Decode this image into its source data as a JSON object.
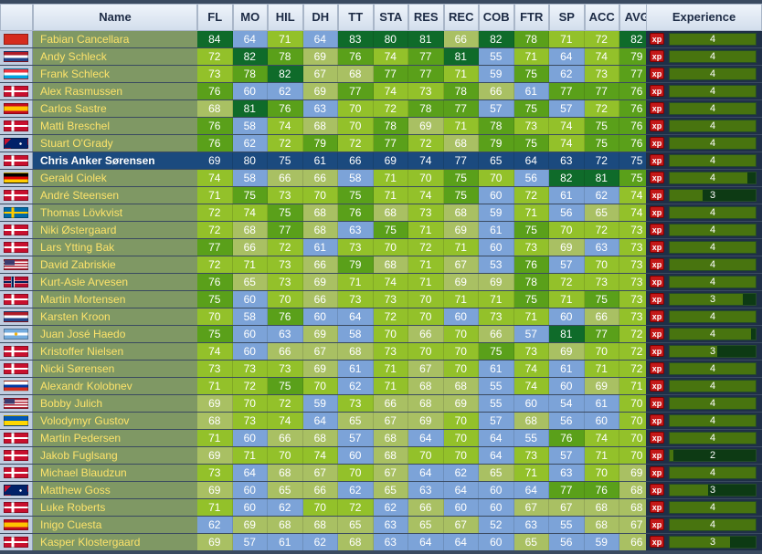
{
  "headers": {
    "name": "Name",
    "stats": [
      "FL",
      "MO",
      "HIL",
      "DH",
      "TT",
      "STA",
      "RES",
      "REC",
      "COB",
      "FTR",
      "SP",
      "ACC",
      "AVG"
    ],
    "experience": "Experience"
  },
  "xp_badge": "xp",
  "selected_rider": "Chris Anker Sørensen",
  "colors": {
    "low": "#7ca3d8",
    "mid_low": "#a9c063",
    "mid": "#93c12a",
    "high": "#5aa01a",
    "top": "#0f6b2a",
    "name_cell": "#7f9864",
    "name_text": "#fde36a",
    "selected_row": "#1b4a7e"
  },
  "riders": [
    {
      "flag": "switzerland",
      "name": "Fabian Cancellara",
      "stats": [
        84,
        64,
        71,
        64,
        83,
        80,
        81,
        66,
        82,
        78,
        71,
        72,
        82
      ],
      "exp_level": 4,
      "exp_progress": 0
    },
    {
      "flag": "netherlands",
      "name": "Andy Schleck",
      "stats": [
        72,
        82,
        78,
        69,
        76,
        74,
        77,
        81,
        55,
        71,
        64,
        74,
        79
      ],
      "exp_level": 4,
      "exp_progress": 0
    },
    {
      "flag": "luxembourg",
      "name": "Frank Schleck",
      "stats": [
        73,
        78,
        82,
        67,
        68,
        77,
        77,
        71,
        59,
        75,
        62,
        73,
        77
      ],
      "exp_level": 4,
      "exp_progress": 0
    },
    {
      "flag": "denmark",
      "name": "Alex Rasmussen",
      "stats": [
        76,
        60,
        62,
        69,
        77,
        74,
        73,
        78,
        66,
        61,
        77,
        77,
        76
      ],
      "exp_level": 4,
      "exp_progress": 0
    },
    {
      "flag": "spain",
      "name": "Carlos Sastre",
      "stats": [
        68,
        81,
        76,
        63,
        70,
        72,
        78,
        77,
        57,
        75,
        57,
        72,
        76
      ],
      "exp_level": 4,
      "exp_progress": 0
    },
    {
      "flag": "denmark",
      "name": "Matti Breschel",
      "stats": [
        76,
        58,
        74,
        68,
        70,
        78,
        69,
        71,
        78,
        73,
        74,
        75,
        76
      ],
      "exp_level": 4,
      "exp_progress": 0
    },
    {
      "flag": "australia",
      "name": "Stuart O'Grady",
      "stats": [
        76,
        62,
        72,
        79,
        72,
        77,
        72,
        68,
        79,
        75,
        74,
        75,
        76
      ],
      "exp_level": 4,
      "exp_progress": 0
    },
    {
      "flag": "denmark",
      "name": "Chris Anker Sørensen",
      "stats": [
        69,
        80,
        75,
        61,
        66,
        69,
        74,
        77,
        65,
        64,
        63,
        72,
        75
      ],
      "exp_level": 4,
      "exp_progress": 0
    },
    {
      "flag": "germany",
      "name": "Gerald Ciolek",
      "stats": [
        74,
        58,
        66,
        66,
        58,
        71,
        70,
        75,
        70,
        56,
        82,
        81,
        75
      ],
      "exp_level": 4,
      "exp_progress": 0.1
    },
    {
      "flag": "denmark",
      "name": "André Steensen",
      "stats": [
        71,
        75,
        73,
        70,
        75,
        71,
        74,
        75,
        60,
        72,
        61,
        62,
        74
      ],
      "exp_level": 3,
      "exp_progress": 0.62
    },
    {
      "flag": "sweden",
      "name": "Thomas Lövkvist",
      "stats": [
        72,
        74,
        75,
        68,
        76,
        68,
        73,
        68,
        59,
        71,
        56,
        65,
        74
      ],
      "exp_level": 4,
      "exp_progress": 0
    },
    {
      "flag": "denmark",
      "name": "Niki Østergaard",
      "stats": [
        72,
        68,
        77,
        68,
        63,
        75,
        71,
        69,
        61,
        75,
        70,
        72,
        73
      ],
      "exp_level": 4,
      "exp_progress": 0
    },
    {
      "flag": "denmark",
      "name": "Lars Ytting Bak",
      "stats": [
        77,
        66,
        72,
        61,
        73,
        70,
        72,
        71,
        60,
        73,
        69,
        63,
        73
      ],
      "exp_level": 4,
      "exp_progress": 0
    },
    {
      "flag": "usa",
      "name": "David Zabriskie",
      "stats": [
        72,
        71,
        73,
        66,
        79,
        68,
        71,
        67,
        53,
        76,
        57,
        70,
        73
      ],
      "exp_level": 4,
      "exp_progress": 0
    },
    {
      "flag": "norway",
      "name": "Kurt-Asle Arvesen",
      "stats": [
        76,
        65,
        73,
        69,
        71,
        74,
        71,
        69,
        69,
        78,
        72,
        73,
        73
      ],
      "exp_level": 4,
      "exp_progress": 0
    },
    {
      "flag": "denmark",
      "name": "Martin Mortensen",
      "stats": [
        75,
        60,
        70,
        66,
        73,
        73,
        70,
        71,
        71,
        75,
        71,
        75,
        73
      ],
      "exp_level": 3,
      "exp_progress": 0.15
    },
    {
      "flag": "netherlands",
      "name": "Karsten Kroon",
      "stats": [
        70,
        58,
        76,
        60,
        64,
        72,
        70,
        60,
        73,
        71,
        60,
        66,
        73
      ],
      "exp_level": 4,
      "exp_progress": 0
    },
    {
      "flag": "argentina",
      "name": "Juan José Haedo",
      "stats": [
        75,
        60,
        63,
        69,
        58,
        70,
        66,
        70,
        66,
        57,
        81,
        77,
        72
      ],
      "exp_level": 4,
      "exp_progress": 0.05
    },
    {
      "flag": "denmark",
      "name": "Kristoffer Nielsen",
      "stats": [
        74,
        60,
        66,
        67,
        68,
        73,
        70,
        70,
        75,
        73,
        69,
        70,
        72
      ],
      "exp_level": 3,
      "exp_progress": 0.45
    },
    {
      "flag": "denmark",
      "name": "Nicki Sørensen",
      "stats": [
        73,
        73,
        73,
        69,
        61,
        71,
        67,
        70,
        61,
        74,
        61,
        71,
        72
      ],
      "exp_level": 4,
      "exp_progress": 0
    },
    {
      "flag": "russia",
      "name": "Alexandr Kolobnev",
      "stats": [
        71,
        72,
        75,
        70,
        62,
        71,
        68,
        68,
        55,
        74,
        60,
        69,
        71
      ],
      "exp_level": 4,
      "exp_progress": 0
    },
    {
      "flag": "usa",
      "name": "Bobby Julich",
      "stats": [
        69,
        70,
        72,
        59,
        73,
        66,
        68,
        69,
        55,
        60,
        54,
        61,
        70
      ],
      "exp_level": 4,
      "exp_progress": 0
    },
    {
      "flag": "ukraine",
      "name": "Volodymyr Gustov",
      "stats": [
        68,
        73,
        74,
        64,
        65,
        67,
        69,
        70,
        57,
        68,
        56,
        60,
        70
      ],
      "exp_level": 4,
      "exp_progress": 0
    },
    {
      "flag": "denmark",
      "name": "Martin Pedersen",
      "stats": [
        71,
        60,
        66,
        68,
        57,
        68,
        64,
        70,
        64,
        55,
        76,
        74,
        70
      ],
      "exp_level": 4,
      "exp_progress": 0
    },
    {
      "flag": "denmark",
      "name": "Jakob Fuglsang",
      "stats": [
        69,
        71,
        70,
        74,
        60,
        68,
        70,
        70,
        64,
        73,
        57,
        71,
        70
      ],
      "exp_level": 2,
      "exp_progress": 0.96
    },
    {
      "flag": "denmark",
      "name": "Michael Blaudzun",
      "stats": [
        73,
        64,
        68,
        67,
        70,
        67,
        64,
        62,
        65,
        71,
        63,
        70,
        69
      ],
      "exp_level": 4,
      "exp_progress": 0
    },
    {
      "flag": "australia",
      "name": "Matthew Goss",
      "stats": [
        69,
        60,
        65,
        66,
        62,
        65,
        63,
        64,
        60,
        64,
        77,
        76,
        68
      ],
      "exp_level": 3,
      "exp_progress": 0.55
    },
    {
      "flag": "denmark",
      "name": "Luke Roberts",
      "stats": [
        71,
        60,
        62,
        70,
        72,
        62,
        66,
        60,
        60,
        67,
        67,
        68,
        68
      ],
      "exp_level": 4,
      "exp_progress": 0
    },
    {
      "flag": "spain",
      "name": "Inigo Cuesta",
      "stats": [
        62,
        69,
        68,
        68,
        65,
        63,
        65,
        67,
        52,
        63,
        55,
        68,
        67
      ],
      "exp_level": 4,
      "exp_progress": 0
    },
    {
      "flag": "denmark",
      "name": "Kasper Klostergaard",
      "stats": [
        69,
        57,
        61,
        62,
        68,
        63,
        64,
        64,
        60,
        65,
        56,
        59,
        66
      ],
      "exp_level": 3,
      "exp_progress": 0.3
    }
  ]
}
